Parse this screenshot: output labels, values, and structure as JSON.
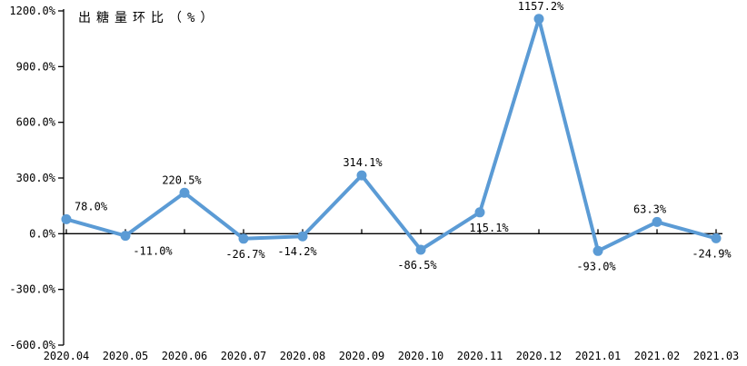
{
  "chart_data": {
    "type": "line",
    "title": "出糖量环比（%）",
    "xlabel": "",
    "ylabel": "",
    "categories": [
      "2020.04",
      "2020.05",
      "2020.06",
      "2020.07",
      "2020.08",
      "2020.09",
      "2020.10",
      "2020.11",
      "2020.12",
      "2021.01",
      "2021.02",
      "2021.03"
    ],
    "series": [
      {
        "name": "出糖量环比",
        "values": [
          78.0,
          -11.0,
          220.5,
          -26.7,
          -14.2,
          314.1,
          -86.5,
          115.1,
          1157.2,
          -93.0,
          63.3,
          -24.9
        ],
        "labels": [
          "78.0%",
          "-11.0%",
          "220.5%",
          "-26.7%",
          "-14.2%",
          "314.1%",
          "-86.5%",
          "115.1%",
          "1157.2%",
          "-93.0%",
          "63.3%",
          "-24.9%"
        ],
        "label_positions": [
          "above",
          "below",
          "above",
          "below",
          "below",
          "above",
          "below",
          "below",
          "above",
          "below",
          "above",
          "below"
        ],
        "label_dx": [
          27,
          30,
          -3,
          2,
          -6,
          1,
          -4,
          10,
          2,
          -2,
          -8,
          -5
        ],
        "color": "#5B9BD5"
      }
    ],
    "ylim": [
      -600,
      1200
    ],
    "yticks": [
      1200,
      900,
      600,
      300,
      0,
      -300,
      -600
    ],
    "ytick_labels": [
      "1200.0%",
      "900.0%",
      "600.0%",
      "300.0%",
      "0.0%",
      "-300.0%",
      "-600.0%"
    ],
    "grid": false,
    "legend": "none",
    "marker": "circle",
    "axis_color": "#000000",
    "text_color": "#000000",
    "background": "#FFFFFF"
  }
}
